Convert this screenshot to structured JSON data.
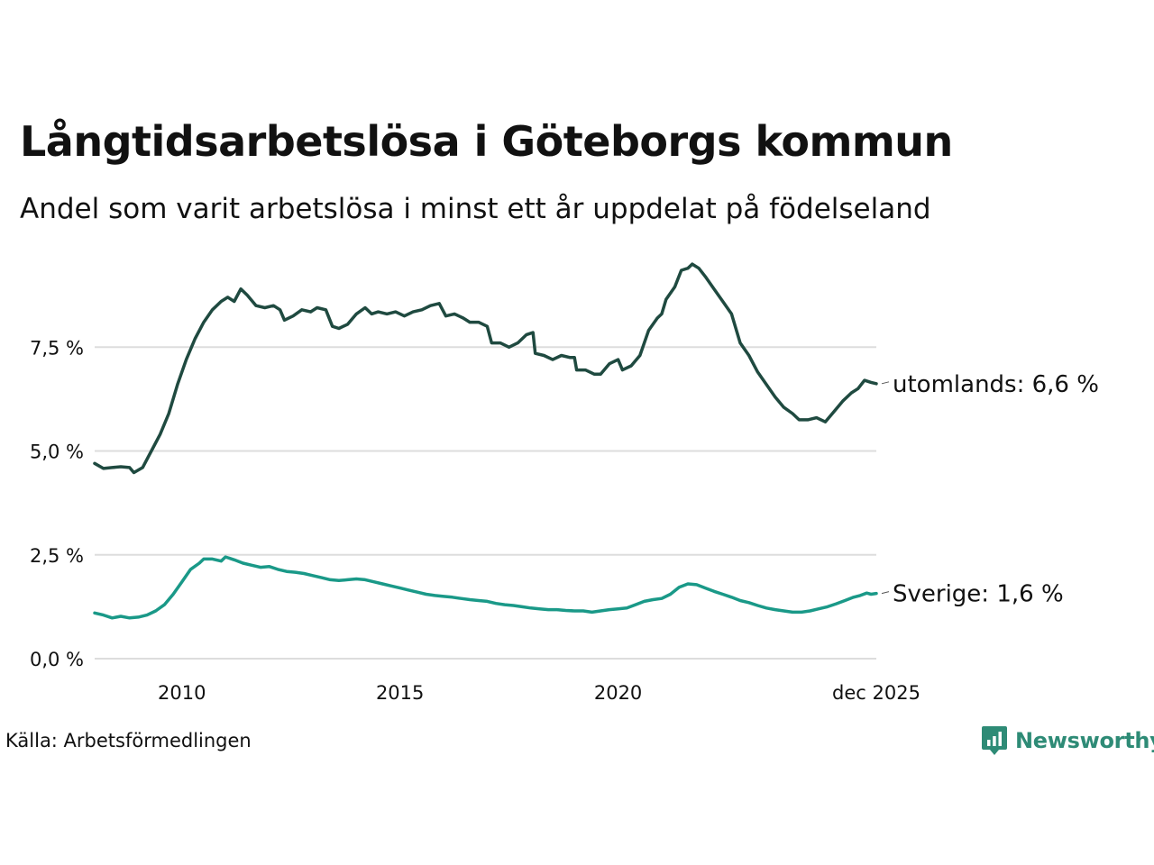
{
  "title": "Långtidsarbetslösa i Göteborgs kommun",
  "subtitle": "Andel som varit arbetslösa i minst ett år uppdelat på födelseland",
  "source": "Källa: Arbetsförmedlingen",
  "brand": "Newsworthy",
  "colors": {
    "utomlands": "#1f4a40",
    "sverige": "#1a9988",
    "grid": "#dddddd",
    "brand": "#2e8b76"
  },
  "chart_data": {
    "type": "line",
    "title": "Långtidsarbetslösa i Göteborgs kommun",
    "xlabel": "",
    "ylabel": "",
    "x_range": [
      2008.0,
      2025.92
    ],
    "ylim": [
      0,
      10
    ],
    "y_ticks": [
      0,
      2.5,
      5.0,
      7.5
    ],
    "y_tick_labels": [
      "0,0 %",
      "2,5 %",
      "5,0 %",
      "7,5 %"
    ],
    "x_ticks": [
      2010,
      2015,
      2020,
      2025.92
    ],
    "x_tick_labels": [
      "2010",
      "2015",
      "2020",
      "dec 2025"
    ],
    "grid": true,
    "series": [
      {
        "name": "utomlands",
        "end_label": "utomlands: 6,6 %",
        "points": [
          [
            2008.0,
            4.7
          ],
          [
            2008.2,
            4.58
          ],
          [
            2008.4,
            4.6
          ],
          [
            2008.6,
            4.62
          ],
          [
            2008.8,
            4.6
          ],
          [
            2008.9,
            4.48
          ],
          [
            2009.1,
            4.6
          ],
          [
            2009.3,
            5.0
          ],
          [
            2009.5,
            5.4
          ],
          [
            2009.7,
            5.9
          ],
          [
            2009.9,
            6.6
          ],
          [
            2010.1,
            7.2
          ],
          [
            2010.3,
            7.7
          ],
          [
            2010.5,
            8.1
          ],
          [
            2010.7,
            8.4
          ],
          [
            2010.9,
            8.6
          ],
          [
            2011.05,
            8.7
          ],
          [
            2011.2,
            8.6
          ],
          [
            2011.35,
            8.9
          ],
          [
            2011.5,
            8.75
          ],
          [
            2011.7,
            8.5
          ],
          [
            2011.9,
            8.45
          ],
          [
            2012.1,
            8.5
          ],
          [
            2012.25,
            8.4
          ],
          [
            2012.35,
            8.15
          ],
          [
            2012.55,
            8.25
          ],
          [
            2012.75,
            8.4
          ],
          [
            2012.95,
            8.35
          ],
          [
            2013.1,
            8.45
          ],
          [
            2013.3,
            8.4
          ],
          [
            2013.45,
            8.0
          ],
          [
            2013.6,
            7.95
          ],
          [
            2013.8,
            8.05
          ],
          [
            2014.0,
            8.3
          ],
          [
            2014.2,
            8.45
          ],
          [
            2014.35,
            8.3
          ],
          [
            2014.5,
            8.35
          ],
          [
            2014.7,
            8.3
          ],
          [
            2014.9,
            8.35
          ],
          [
            2015.1,
            8.25
          ],
          [
            2015.3,
            8.35
          ],
          [
            2015.5,
            8.4
          ],
          [
            2015.7,
            8.5
          ],
          [
            2015.9,
            8.55
          ],
          [
            2016.05,
            8.25
          ],
          [
            2016.25,
            8.3
          ],
          [
            2016.45,
            8.2
          ],
          [
            2016.6,
            8.1
          ],
          [
            2016.8,
            8.1
          ],
          [
            2017.0,
            8.0
          ],
          [
            2017.1,
            7.6
          ],
          [
            2017.3,
            7.6
          ],
          [
            2017.5,
            7.5
          ],
          [
            2017.7,
            7.6
          ],
          [
            2017.9,
            7.8
          ],
          [
            2018.05,
            7.85
          ],
          [
            2018.1,
            7.35
          ],
          [
            2018.3,
            7.3
          ],
          [
            2018.5,
            7.2
          ],
          [
            2018.7,
            7.3
          ],
          [
            2018.9,
            7.25
          ],
          [
            2019.0,
            7.25
          ],
          [
            2019.05,
            6.95
          ],
          [
            2019.25,
            6.95
          ],
          [
            2019.45,
            6.85
          ],
          [
            2019.6,
            6.85
          ],
          [
            2019.8,
            7.1
          ],
          [
            2020.0,
            7.2
          ],
          [
            2020.1,
            6.95
          ],
          [
            2020.3,
            7.05
          ],
          [
            2020.5,
            7.3
          ],
          [
            2020.7,
            7.9
          ],
          [
            2020.9,
            8.2
          ],
          [
            2021.0,
            8.3
          ],
          [
            2021.1,
            8.65
          ],
          [
            2021.3,
            8.95
          ],
          [
            2021.45,
            9.35
          ],
          [
            2021.6,
            9.4
          ],
          [
            2021.7,
            9.5
          ],
          [
            2021.85,
            9.4
          ],
          [
            2022.0,
            9.2
          ],
          [
            2022.2,
            8.9
          ],
          [
            2022.4,
            8.6
          ],
          [
            2022.6,
            8.3
          ],
          [
            2022.8,
            7.6
          ],
          [
            2023.0,
            7.3
          ],
          [
            2023.2,
            6.9
          ],
          [
            2023.4,
            6.6
          ],
          [
            2023.6,
            6.3
          ],
          [
            2023.8,
            6.05
          ],
          [
            2024.0,
            5.9
          ],
          [
            2024.15,
            5.75
          ],
          [
            2024.35,
            5.75
          ],
          [
            2024.55,
            5.8
          ],
          [
            2024.75,
            5.7
          ],
          [
            2024.95,
            5.95
          ],
          [
            2025.15,
            6.2
          ],
          [
            2025.35,
            6.4
          ],
          [
            2025.5,
            6.5
          ],
          [
            2025.65,
            6.7
          ],
          [
            2025.8,
            6.65
          ],
          [
            2025.92,
            6.62
          ]
        ]
      },
      {
        "name": "Sverige",
        "end_label": "Sverige: 1,6 %",
        "points": [
          [
            2008.0,
            1.1
          ],
          [
            2008.2,
            1.05
          ],
          [
            2008.4,
            0.98
          ],
          [
            2008.6,
            1.02
          ],
          [
            2008.8,
            0.98
          ],
          [
            2009.0,
            1.0
          ],
          [
            2009.2,
            1.05
          ],
          [
            2009.4,
            1.15
          ],
          [
            2009.6,
            1.3
          ],
          [
            2009.8,
            1.55
          ],
          [
            2010.0,
            1.85
          ],
          [
            2010.2,
            2.15
          ],
          [
            2010.4,
            2.3
          ],
          [
            2010.5,
            2.4
          ],
          [
            2010.7,
            2.4
          ],
          [
            2010.9,
            2.35
          ],
          [
            2011.0,
            2.45
          ],
          [
            2011.2,
            2.38
          ],
          [
            2011.4,
            2.3
          ],
          [
            2011.6,
            2.25
          ],
          [
            2011.8,
            2.2
          ],
          [
            2012.0,
            2.22
          ],
          [
            2012.2,
            2.15
          ],
          [
            2012.4,
            2.1
          ],
          [
            2012.6,
            2.08
          ],
          [
            2012.8,
            2.05
          ],
          [
            2013.0,
            2.0
          ],
          [
            2013.2,
            1.95
          ],
          [
            2013.4,
            1.9
          ],
          [
            2013.6,
            1.88
          ],
          [
            2013.8,
            1.9
          ],
          [
            2014.0,
            1.92
          ],
          [
            2014.2,
            1.9
          ],
          [
            2014.4,
            1.85
          ],
          [
            2014.6,
            1.8
          ],
          [
            2014.8,
            1.75
          ],
          [
            2015.0,
            1.7
          ],
          [
            2015.2,
            1.65
          ],
          [
            2015.4,
            1.6
          ],
          [
            2015.6,
            1.55
          ],
          [
            2015.8,
            1.52
          ],
          [
            2016.0,
            1.5
          ],
          [
            2016.2,
            1.48
          ],
          [
            2016.4,
            1.45
          ],
          [
            2016.6,
            1.42
          ],
          [
            2016.8,
            1.4
          ],
          [
            2017.0,
            1.38
          ],
          [
            2017.2,
            1.33
          ],
          [
            2017.4,
            1.3
          ],
          [
            2017.6,
            1.28
          ],
          [
            2017.8,
            1.25
          ],
          [
            2018.0,
            1.22
          ],
          [
            2018.2,
            1.2
          ],
          [
            2018.4,
            1.18
          ],
          [
            2018.6,
            1.18
          ],
          [
            2018.8,
            1.16
          ],
          [
            2019.0,
            1.15
          ],
          [
            2019.2,
            1.15
          ],
          [
            2019.4,
            1.12
          ],
          [
            2019.6,
            1.15
          ],
          [
            2019.8,
            1.18
          ],
          [
            2020.0,
            1.2
          ],
          [
            2020.2,
            1.22
          ],
          [
            2020.4,
            1.3
          ],
          [
            2020.6,
            1.38
          ],
          [
            2020.8,
            1.42
          ],
          [
            2021.0,
            1.45
          ],
          [
            2021.2,
            1.55
          ],
          [
            2021.4,
            1.72
          ],
          [
            2021.6,
            1.8
          ],
          [
            2021.8,
            1.78
          ],
          [
            2022.0,
            1.7
          ],
          [
            2022.2,
            1.62
          ],
          [
            2022.4,
            1.55
          ],
          [
            2022.6,
            1.48
          ],
          [
            2022.8,
            1.4
          ],
          [
            2023.0,
            1.35
          ],
          [
            2023.2,
            1.28
          ],
          [
            2023.4,
            1.22
          ],
          [
            2023.6,
            1.18
          ],
          [
            2023.8,
            1.15
          ],
          [
            2024.0,
            1.12
          ],
          [
            2024.2,
            1.12
          ],
          [
            2024.4,
            1.15
          ],
          [
            2024.6,
            1.2
          ],
          [
            2024.8,
            1.25
          ],
          [
            2025.0,
            1.32
          ],
          [
            2025.2,
            1.4
          ],
          [
            2025.4,
            1.48
          ],
          [
            2025.55,
            1.52
          ],
          [
            2025.7,
            1.58
          ],
          [
            2025.8,
            1.55
          ],
          [
            2025.92,
            1.57
          ]
        ]
      }
    ]
  }
}
